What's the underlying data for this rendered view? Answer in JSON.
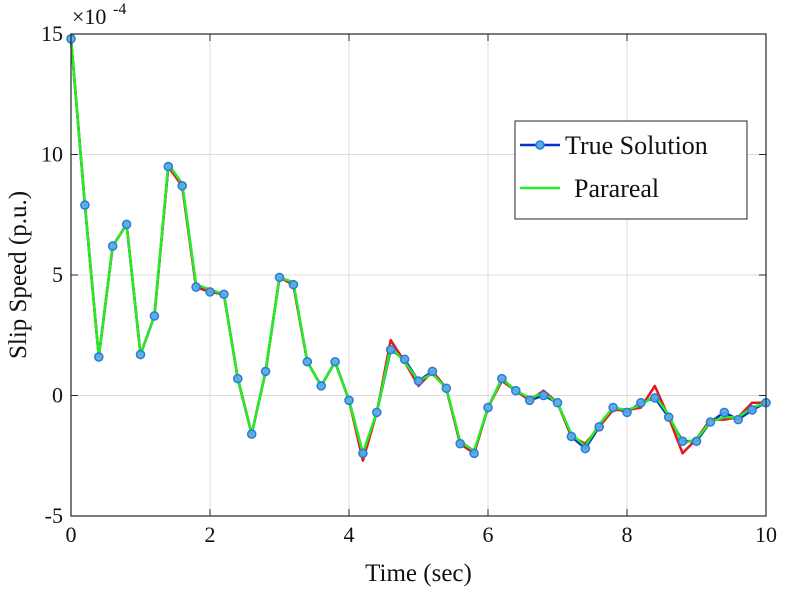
{
  "chart_data": {
    "type": "line",
    "xlabel": "Time (sec)",
    "ylabel": "Slip Speed (p.u.)",
    "y_exponent": {
      "base": "×10",
      "power": "-4"
    },
    "xlim": [
      0,
      10
    ],
    "ylim": [
      -5,
      15
    ],
    "xticks": [
      0,
      2,
      4,
      6,
      8,
      10
    ],
    "yticks": [
      -5,
      0,
      5,
      10,
      15
    ],
    "xtick_labels": [
      "0",
      "2",
      "4",
      "6",
      "8",
      "10"
    ],
    "ytick_labels": [
      "-5",
      "0",
      "5",
      "10",
      "15"
    ],
    "grid": true,
    "legend_position": "right",
    "legend": [
      {
        "label": "True Solution",
        "series_index": 0
      },
      {
        "label": "Parareal",
        "series_index": 2
      }
    ],
    "series": [
      {
        "name": "True Solution",
        "color": "#0033cc",
        "marker": "circle",
        "marker_color": "#2a7fd4",
        "marker_fill": "#5aa8e8",
        "x": [
          0,
          0.2,
          0.4,
          0.6,
          0.8,
          1.0,
          1.2,
          1.4,
          1.6,
          1.8,
          2.0,
          2.2,
          2.4,
          2.6,
          2.8,
          3.0,
          3.2,
          3.4,
          3.6,
          3.8,
          4.0,
          4.2,
          4.4,
          4.6,
          4.8,
          5.0,
          5.2,
          5.4,
          5.6,
          5.8,
          6.0,
          6.2,
          6.4,
          6.6,
          6.8,
          7.0,
          7.2,
          7.4,
          7.6,
          7.8,
          8.0,
          8.2,
          8.4,
          8.6,
          8.8,
          9.0,
          9.2,
          9.4,
          9.6,
          9.8,
          10.0
        ],
        "y": [
          14.8,
          7.9,
          1.6,
          6.2,
          7.1,
          1.7,
          3.3,
          9.5,
          8.7,
          4.5,
          4.3,
          4.2,
          0.7,
          -1.6,
          1.0,
          4.9,
          4.6,
          1.4,
          0.4,
          1.4,
          -0.2,
          -2.4,
          -0.7,
          1.9,
          1.5,
          0.6,
          1.0,
          0.3,
          -2.0,
          -2.4,
          -0.5,
          0.7,
          0.2,
          -0.2,
          0.0,
          -0.3,
          -1.7,
          -2.2,
          -1.3,
          -0.5,
          -0.7,
          -0.3,
          -0.1,
          -0.9,
          -1.9,
          -1.9,
          -1.1,
          -0.7,
          -1.0,
          -0.6,
          -0.3
        ]
      },
      {
        "name": "",
        "color": "#e8141e",
        "x": [
          0,
          0.2,
          0.4,
          0.6,
          0.8,
          1.0,
          1.2,
          1.4,
          1.6,
          1.8,
          2.0,
          2.2,
          2.4,
          2.6,
          2.8,
          3.0,
          3.2,
          3.4,
          3.6,
          3.8,
          4.0,
          4.2,
          4.4,
          4.6,
          4.8,
          5.0,
          5.2,
          5.4,
          5.6,
          5.8,
          6.0,
          6.2,
          6.4,
          6.6,
          6.8,
          7.0,
          7.2,
          7.4,
          7.6,
          7.8,
          8.0,
          8.2,
          8.4,
          8.6,
          8.8,
          9.0,
          9.2,
          9.4,
          9.6,
          9.8,
          10.0
        ],
        "y": [
          14.8,
          7.9,
          1.6,
          6.2,
          7.1,
          1.7,
          3.3,
          9.5,
          8.7,
          4.5,
          4.3,
          4.2,
          0.7,
          -1.6,
          1.0,
          4.9,
          4.6,
          1.4,
          0.4,
          1.4,
          -0.2,
          -2.7,
          -0.7,
          2.3,
          1.4,
          0.4,
          1.0,
          0.3,
          -2.0,
          -2.4,
          -0.5,
          0.6,
          0.2,
          -0.2,
          0.2,
          -0.3,
          -1.7,
          -2.0,
          -1.3,
          -0.6,
          -0.6,
          -0.5,
          0.4,
          -0.9,
          -2.4,
          -1.8,
          -1.0,
          -1.0,
          -0.9,
          -0.3,
          -0.3
        ]
      },
      {
        "name": "Parareal",
        "color": "#22ee22",
        "x": [
          0,
          0.2,
          0.4,
          0.6,
          0.8,
          1.0,
          1.2,
          1.4,
          1.6,
          1.8,
          2.0,
          2.2,
          2.4,
          2.6,
          2.8,
          3.0,
          3.2,
          3.4,
          3.6,
          3.8,
          4.0,
          4.2,
          4.4,
          4.6,
          4.8,
          5.0,
          5.2,
          5.4,
          5.6,
          5.8,
          6.0,
          6.2,
          6.4,
          6.6,
          6.8,
          7.0,
          7.2,
          7.4,
          7.6,
          7.8,
          8.0,
          8.2,
          8.4,
          8.6,
          8.8,
          9.0,
          9.2,
          9.4,
          9.6,
          9.8,
          10.0
        ],
        "y": [
          14.8,
          7.9,
          1.6,
          6.2,
          7.1,
          1.7,
          3.3,
          9.6,
          8.8,
          4.6,
          4.4,
          4.2,
          0.7,
          -1.6,
          1.0,
          4.9,
          4.7,
          1.4,
          0.4,
          1.4,
          -0.2,
          -2.4,
          -0.7,
          2.0,
          1.4,
          0.6,
          0.9,
          0.3,
          -1.9,
          -2.3,
          -0.5,
          0.7,
          0.2,
          -0.1,
          0.1,
          -0.3,
          -1.6,
          -2.1,
          -1.2,
          -0.5,
          -0.6,
          -0.4,
          0.0,
          -0.8,
          -2.0,
          -1.8,
          -1.1,
          -0.9,
          -0.9,
          -0.5,
          -0.3
        ]
      }
    ]
  }
}
